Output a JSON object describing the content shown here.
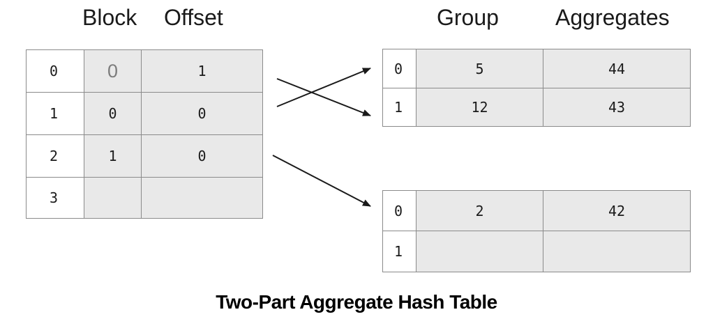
{
  "headers": {
    "block": "Block",
    "offset": "Offset",
    "group": "Group",
    "aggregates": "Aggregates"
  },
  "pointer_table": {
    "rows": [
      {
        "index": "0",
        "block": "0",
        "offset": "1"
      },
      {
        "index": "1",
        "block": "0",
        "offset": "0"
      },
      {
        "index": "2",
        "block": "1",
        "offset": "0"
      },
      {
        "index": "3",
        "block": "",
        "offset": ""
      }
    ]
  },
  "data_blocks": [
    {
      "rows": [
        {
          "index": "0",
          "group": "5",
          "aggregates": "44"
        },
        {
          "index": "1",
          "group": "12",
          "aggregates": "43"
        }
      ]
    },
    {
      "rows": [
        {
          "index": "0",
          "group": "2",
          "aggregates": "42"
        },
        {
          "index": "1",
          "group": "",
          "aggregates": ""
        }
      ]
    }
  ],
  "caption": "Two-Part Aggregate Hash Table",
  "colors": {
    "cell_fill": "#e9e9e9",
    "border": "#8a8a8a",
    "arrow": "#1a1a1a"
  }
}
